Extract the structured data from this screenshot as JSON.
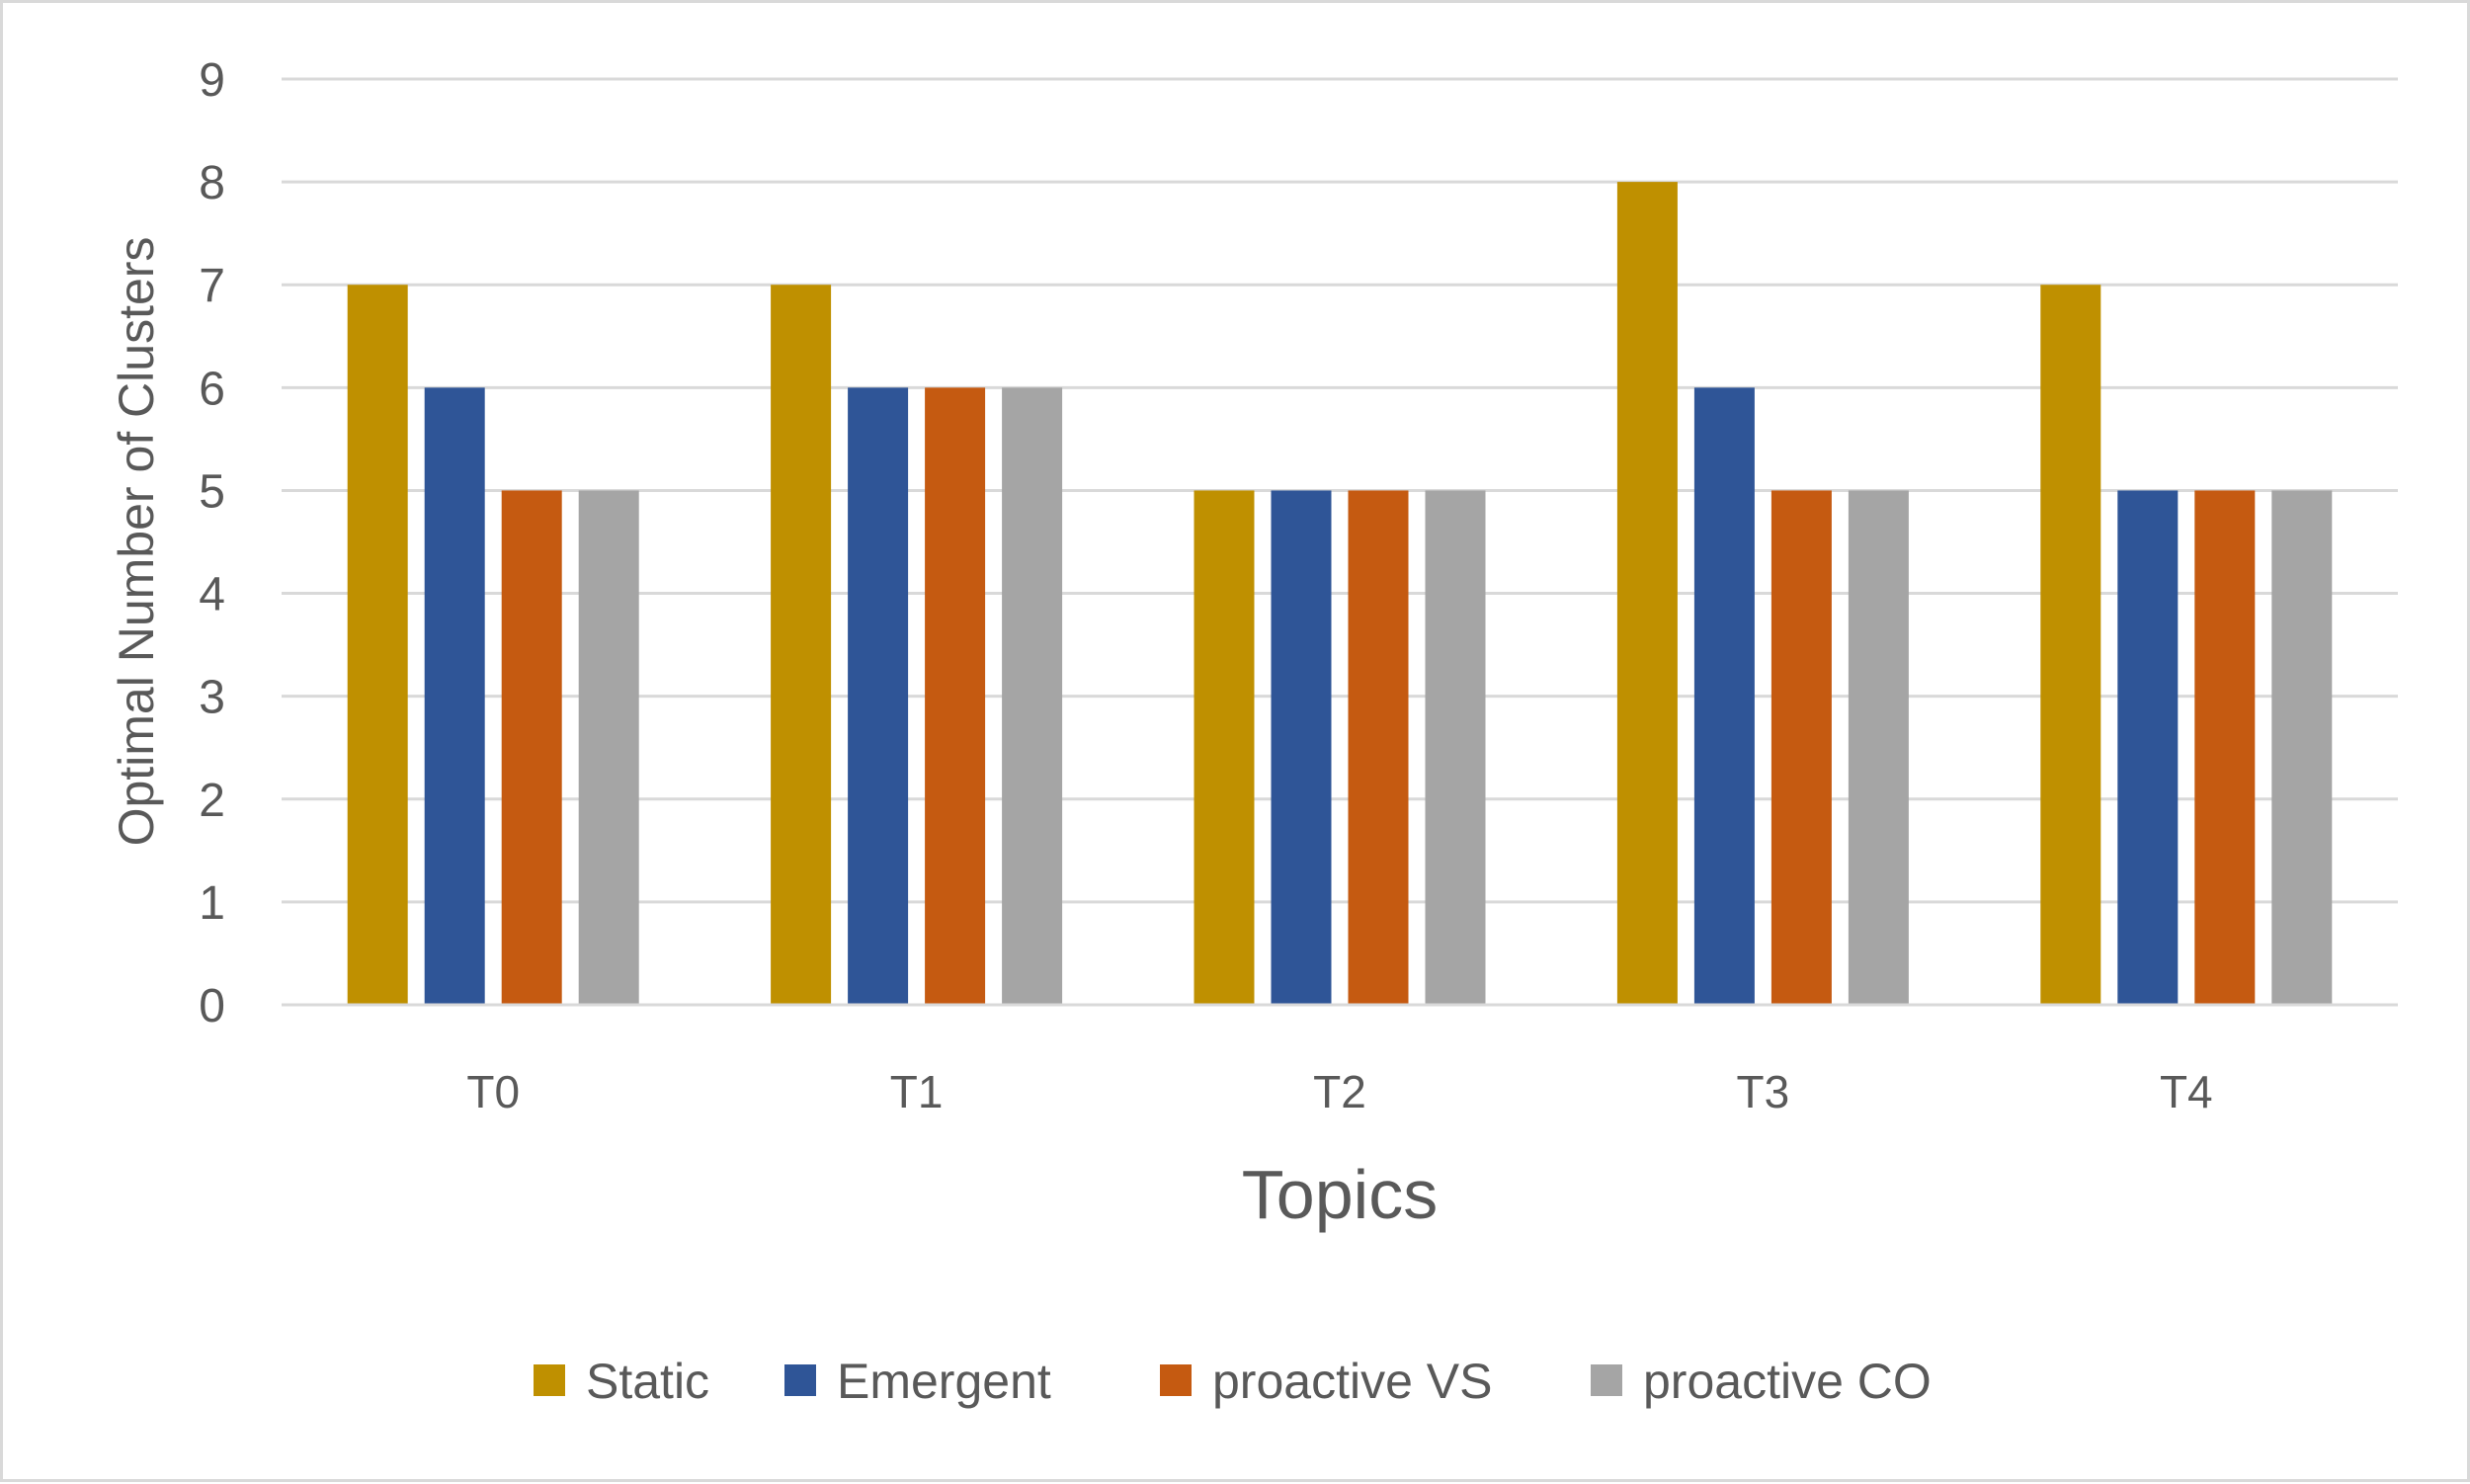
{
  "chart_data": {
    "type": "bar",
    "title": "",
    "xlabel": "Topics",
    "ylabel": "Optimal Number of Clusters",
    "categories": [
      "T0",
      "T1",
      "T2",
      "T3",
      "T4"
    ],
    "ylim": [
      0,
      9
    ],
    "yticks": [
      "0",
      "1",
      "2",
      "3",
      "4",
      "5",
      "6",
      "7",
      "8",
      "9"
    ],
    "grid": true,
    "legend_position": "bottom",
    "series": [
      {
        "name": "Static",
        "color": "#bf9000",
        "values": [
          7,
          7,
          5,
          8,
          7
        ]
      },
      {
        "name": "Emergent",
        "color": "#2f5597",
        "values": [
          6,
          6,
          5,
          6,
          5
        ]
      },
      {
        "name": "proactive VS",
        "color": "#c55a11",
        "values": [
          5,
          6,
          5,
          5,
          5
        ]
      },
      {
        "name": "proactive CO",
        "color": "#a5a5a5",
        "values": [
          5,
          6,
          5,
          5,
          5
        ]
      }
    ]
  }
}
